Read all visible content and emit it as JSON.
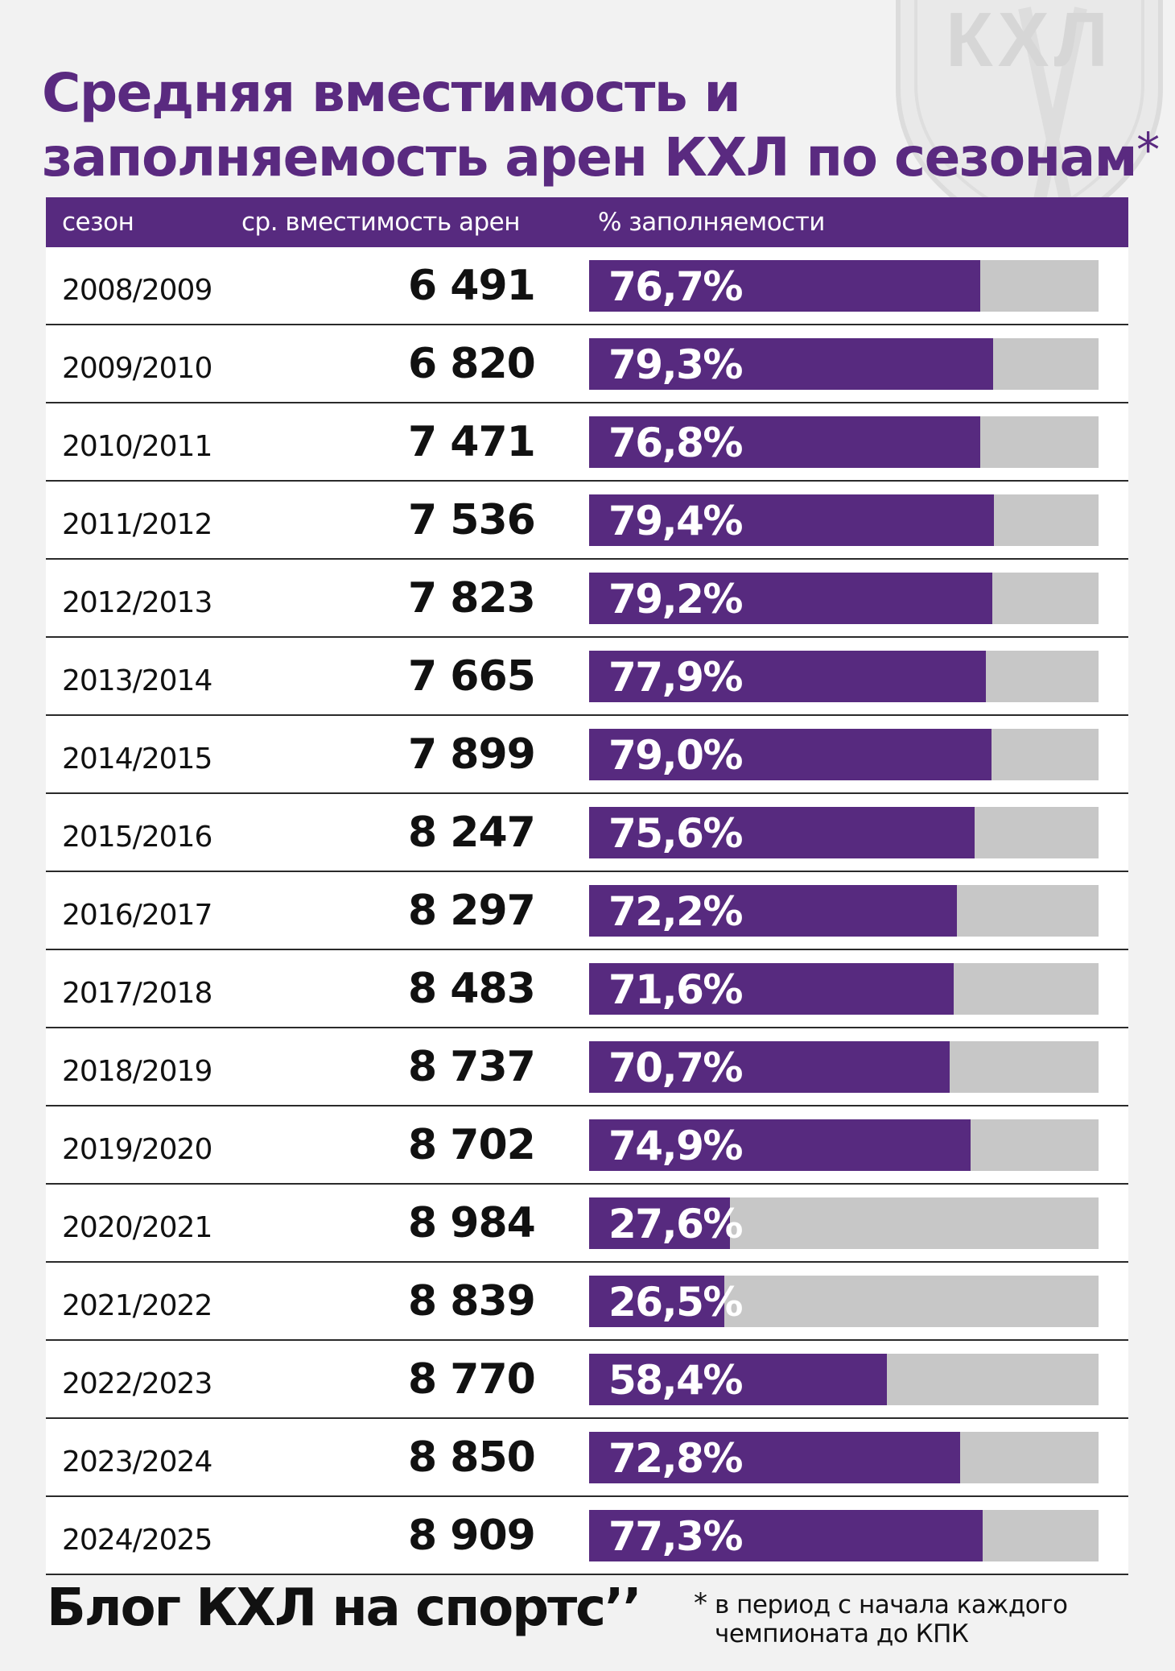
{
  "title": {
    "line1": "Средняя вместимость и",
    "line2": "заполняемость арен КХЛ по сезонам",
    "asterisk": "*"
  },
  "watermark": {
    "text": "КХЛ",
    "icon": "khl-logo-icon"
  },
  "colors": {
    "accent": "#572a7f",
    "track": "#c7c7c7",
    "title": "#5a2a80",
    "background": "#f2f2f2"
  },
  "chart_data": {
    "type": "table",
    "columns": [
      "сезон",
      "ср. вместимость арен",
      "% заполняемости"
    ],
    "rows": [
      {
        "season": "2008/2009",
        "capacity": "6 491",
        "fill_label": "76,7%",
        "fill": 76.7
      },
      {
        "season": "2009/2010",
        "capacity": "6 820",
        "fill_label": "79,3%",
        "fill": 79.3
      },
      {
        "season": "2010/2011",
        "capacity": "7 471",
        "fill_label": "76,8%",
        "fill": 76.8
      },
      {
        "season": "2011/2012",
        "capacity": "7 536",
        "fill_label": "79,4%",
        "fill": 79.4
      },
      {
        "season": "2012/2013",
        "capacity": "7 823",
        "fill_label": "79,2%",
        "fill": 79.2
      },
      {
        "season": "2013/2014",
        "capacity": "7 665",
        "fill_label": "77,9%",
        "fill": 77.9
      },
      {
        "season": "2014/2015",
        "capacity": "7 899",
        "fill_label": "79,0%",
        "fill": 79.0
      },
      {
        "season": "2015/2016",
        "capacity": "8 247",
        "fill_label": "75,6%",
        "fill": 75.6
      },
      {
        "season": "2016/2017",
        "capacity": "8 297",
        "fill_label": "72,2%",
        "fill": 72.2
      },
      {
        "season": "2017/2018",
        "capacity": "8 483",
        "fill_label": "71,6%",
        "fill": 71.6
      },
      {
        "season": "2018/2019",
        "capacity": "8 737",
        "fill_label": "70,7%",
        "fill": 70.7
      },
      {
        "season": "2019/2020",
        "capacity": "8 702",
        "fill_label": "74,9%",
        "fill": 74.9
      },
      {
        "season": "2020/2021",
        "capacity": "8 984",
        "fill_label": "27,6%",
        "fill": 27.6
      },
      {
        "season": "2021/2022",
        "capacity": "8 839",
        "fill_label": "26,5%",
        "fill": 26.5
      },
      {
        "season": "2022/2023",
        "capacity": "8 770",
        "fill_label": "58,4%",
        "fill": 58.4
      },
      {
        "season": "2023/2024",
        "capacity": "8 850",
        "fill_label": "72,8%",
        "fill": 72.8
      },
      {
        "season": "2024/2025",
        "capacity": "8 909",
        "fill_label": "77,3%",
        "fill": 77.3
      }
    ],
    "fill_range": [
      0,
      100
    ]
  },
  "footer": {
    "brand": "Блог КХЛ на спортс’’",
    "note_star": "*",
    "note_line1": "в период с начала каждого",
    "note_line2": "чемпионата до КПК"
  }
}
